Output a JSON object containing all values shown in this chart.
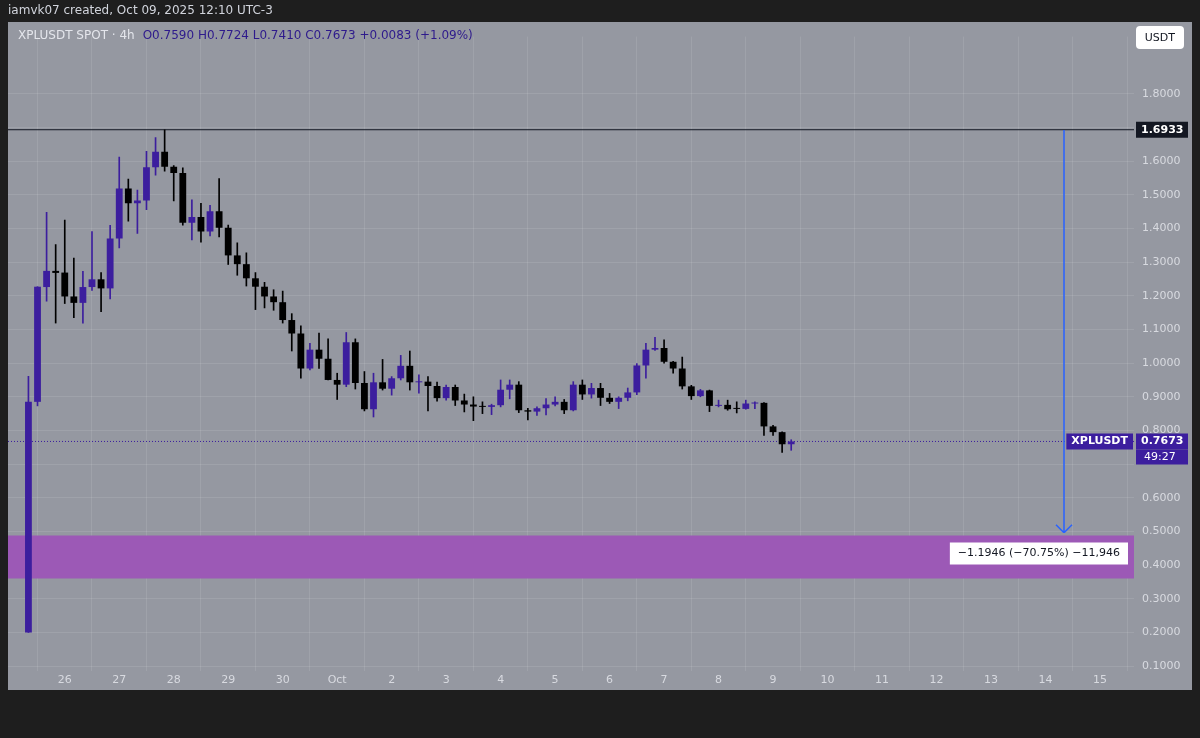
{
  "chart_data": {
    "type": "candlestick",
    "title": "XPLUSDT SPOT · 4h",
    "subtitle": "O0.7590 H0.7724 L0.7410 C0.7673 +0.0083 (+1.09%)",
    "annotations": [
      "iamvk07 created, Oct 09, 2025 12:10 UTC-3",
      "USDT",
      "49:27",
      "XPLUSDT",
      {
        "text": "−1.1946 (−70.75%) −11,946",
        "x": "2025-10-14T08:00",
        "y": 0.488
      }
    ],
    "x": [
      "2025-09-25T08:00",
      "2025-09-25T12:00",
      "2025-09-25T16:00",
      "2025-09-25T20:00",
      "2025-09-26T00:00",
      "2025-09-26T04:00",
      "2025-09-26T08:00",
      "2025-09-26T12:00",
      "2025-09-26T16:00",
      "2025-09-26T20:00",
      "2025-09-27T00:00",
      "2025-09-27T04:00",
      "2025-09-27T08:00",
      "2025-09-27T12:00",
      "2025-09-27T16:00",
      "2025-09-27T20:00",
      "2025-09-28T00:00",
      "2025-09-28T04:00",
      "2025-09-28T08:00",
      "2025-09-28T12:00",
      "2025-09-28T16:00",
      "2025-09-28T20:00",
      "2025-09-29T00:00",
      "2025-09-29T04:00",
      "2025-09-29T08:00",
      "2025-09-29T12:00",
      "2025-09-29T16:00",
      "2025-09-29T20:00",
      "2025-09-30T00:00",
      "2025-09-30T04:00",
      "2025-09-30T08:00",
      "2025-09-30T12:00",
      "2025-09-30T16:00",
      "2025-09-30T20:00",
      "2025-10-01T00:00",
      "2025-10-01T04:00",
      "2025-10-01T08:00",
      "2025-10-01T12:00",
      "2025-10-01T16:00",
      "2025-10-01T20:00",
      "2025-10-02T00:00",
      "2025-10-02T04:00",
      "2025-10-02T08:00",
      "2025-10-02T12:00",
      "2025-10-02T16:00",
      "2025-10-02T20:00",
      "2025-10-03T00:00",
      "2025-10-03T04:00",
      "2025-10-03T08:00",
      "2025-10-03T12:00",
      "2025-10-03T16:00",
      "2025-10-03T20:00",
      "2025-10-04T00:00",
      "2025-10-04T04:00",
      "2025-10-04T08:00",
      "2025-10-04T12:00",
      "2025-10-04T16:00",
      "2025-10-04T20:00",
      "2025-10-05T00:00",
      "2025-10-05T04:00",
      "2025-10-05T08:00",
      "2025-10-05T12:00",
      "2025-10-05T16:00",
      "2025-10-05T20:00",
      "2025-10-06T00:00",
      "2025-10-06T04:00",
      "2025-10-06T08:00",
      "2025-10-06T12:00",
      "2025-10-06T16:00",
      "2025-10-06T20:00",
      "2025-10-07T00:00",
      "2025-10-07T04:00",
      "2025-10-07T08:00",
      "2025-10-07T12:00",
      "2025-10-07T16:00",
      "2025-10-07T20:00",
      "2025-10-08T00:00",
      "2025-10-08T04:00",
      "2025-10-08T08:00",
      "2025-10-08T12:00",
      "2025-10-08T16:00",
      "2025-10-08T20:00",
      "2025-10-09T00:00",
      "2025-10-09T04:00",
      "2025-10-09T08:00"
    ],
    "ohlc": [
      [
        0.2,
        0.961,
        0.2,
        0.885
      ],
      [
        0.885,
        1.227,
        0.873,
        1.227
      ],
      [
        1.226,
        1.448,
        1.184,
        1.274
      ],
      [
        1.274,
        1.352,
        1.119,
        1.268
      ],
      [
        1.269,
        1.425,
        1.177,
        1.198
      ],
      [
        1.198,
        1.312,
        1.135,
        1.179
      ],
      [
        1.179,
        1.273,
        1.119,
        1.226
      ],
      [
        1.226,
        1.391,
        1.216,
        1.249
      ],
      [
        1.249,
        1.269,
        1.153,
        1.222
      ],
      [
        1.222,
        1.409,
        1.191,
        1.37
      ],
      [
        1.37,
        1.612,
        1.342,
        1.519
      ],
      [
        1.519,
        1.547,
        1.422,
        1.475
      ],
      [
        1.475,
        1.514,
        1.385,
        1.483
      ],
      [
        1.483,
        1.629,
        1.456,
        1.582
      ],
      [
        1.582,
        1.67,
        1.558,
        1.628
      ],
      [
        1.628,
        1.6933,
        1.57,
        1.583
      ],
      [
        1.583,
        1.587,
        1.482,
        1.565
      ],
      [
        1.565,
        1.58,
        1.41,
        1.417
      ],
      [
        1.417,
        1.485,
        1.366,
        1.434
      ],
      [
        1.434,
        1.475,
        1.359,
        1.391
      ],
      [
        1.391,
        1.469,
        1.378,
        1.451
      ],
      [
        1.451,
        1.548,
        1.375,
        1.402
      ],
      [
        1.402,
        1.41,
        1.293,
        1.32
      ],
      [
        1.32,
        1.357,
        1.261,
        1.294
      ],
      [
        1.294,
        1.328,
        1.229,
        1.252
      ],
      [
        1.252,
        1.269,
        1.159,
        1.227
      ],
      [
        1.227,
        1.24,
        1.164,
        1.198
      ],
      [
        1.198,
        1.218,
        1.157,
        1.181
      ],
      [
        1.181,
        1.214,
        1.119,
        1.128
      ],
      [
        1.128,
        1.147,
        1.036,
        1.088
      ],
      [
        1.088,
        1.111,
        0.955,
        0.984
      ],
      [
        0.984,
        1.059,
        0.98,
        1.04
      ],
      [
        1.04,
        1.089,
        0.984,
        1.013
      ],
      [
        1.013,
        1.072,
        0.95,
        0.95
      ],
      [
        0.95,
        0.97,
        0.892,
        0.936
      ],
      [
        0.936,
        1.091,
        0.93,
        1.062
      ],
      [
        1.062,
        1.072,
        0.923,
        0.941
      ],
      [
        0.941,
        0.975,
        0.858,
        0.863
      ],
      [
        0.863,
        0.97,
        0.84,
        0.943
      ],
      [
        0.943,
        1.011,
        0.92,
        0.924
      ],
      [
        0.924,
        0.96,
        0.905,
        0.955
      ],
      [
        0.955,
        1.023,
        0.95,
        0.992
      ],
      [
        0.992,
        1.036,
        0.92,
        0.943
      ],
      [
        0.943,
        0.965,
        0.911,
        0.945
      ],
      [
        0.945,
        0.96,
        0.858,
        0.932
      ],
      [
        0.932,
        0.944,
        0.887,
        0.896
      ],
      [
        0.896,
        0.935,
        0.89,
        0.929
      ],
      [
        0.929,
        0.935,
        0.874,
        0.889
      ],
      [
        0.889,
        0.908,
        0.855,
        0.877
      ],
      [
        0.877,
        0.9,
        0.829,
        0.871
      ],
      [
        0.871,
        0.885,
        0.85,
        0.87
      ],
      [
        0.87,
        0.878,
        0.847,
        0.875
      ],
      [
        0.875,
        0.95,
        0.87,
        0.921
      ],
      [
        0.921,
        0.95,
        0.894,
        0.936
      ],
      [
        0.936,
        0.945,
        0.853,
        0.86
      ],
      [
        0.86,
        0.866,
        0.831,
        0.856
      ],
      [
        0.856,
        0.87,
        0.845,
        0.866
      ],
      [
        0.866,
        0.895,
        0.846,
        0.877
      ],
      [
        0.877,
        0.9,
        0.873,
        0.885
      ],
      [
        0.885,
        0.892,
        0.85,
        0.86
      ],
      [
        0.86,
        0.945,
        0.858,
        0.936
      ],
      [
        0.936,
        0.95,
        0.892,
        0.907
      ],
      [
        0.907,
        0.94,
        0.896,
        0.926
      ],
      [
        0.926,
        0.94,
        0.874,
        0.897
      ],
      [
        0.897,
        0.91,
        0.88,
        0.885
      ],
      [
        0.885,
        0.9,
        0.865,
        0.897
      ],
      [
        0.897,
        0.926,
        0.888,
        0.913
      ],
      [
        0.913,
        0.999,
        0.906,
        0.993
      ],
      [
        0.993,
        1.059,
        0.955,
        1.04
      ],
      [
        1.04,
        1.077,
        1.038,
        1.045
      ],
      [
        1.045,
        1.069,
        1.0,
        1.004
      ],
      [
        1.004,
        1.005,
        0.97,
        0.984
      ],
      [
        0.984,
        1.018,
        0.923,
        0.931
      ],
      [
        0.931,
        0.934,
        0.892,
        0.902
      ],
      [
        0.902,
        0.922,
        0.9,
        0.919
      ],
      [
        0.919,
        0.92,
        0.856,
        0.873
      ],
      [
        0.873,
        0.89,
        0.87,
        0.876
      ],
      [
        0.876,
        0.89,
        0.86,
        0.863
      ],
      [
        0.866,
        0.885,
        0.852,
        0.864
      ],
      [
        0.864,
        0.89,
        0.863,
        0.88
      ],
      [
        0.88,
        0.885,
        0.865,
        0.882
      ],
      [
        0.882,
        0.883,
        0.785,
        0.812
      ],
      [
        0.812,
        0.815,
        0.785,
        0.795
      ],
      [
        0.795,
        0.796,
        0.735,
        0.759
      ],
      [
        0.759,
        0.7724,
        0.741,
        0.7673
      ]
    ],
    "colors": [
      "#3c1e9e",
      "#3c1e9e",
      "#3c1e9e",
      "#000000",
      "#000000",
      "#000000",
      "#3c1e9e",
      "#3c1e9e",
      "#000000",
      "#3c1e9e",
      "#3c1e9e",
      "#000000",
      "#3c1e9e",
      "#3c1e9e",
      "#3c1e9e",
      "#000000",
      "#000000",
      "#000000",
      "#3c1e9e",
      "#000000",
      "#3c1e9e",
      "#000000",
      "#000000",
      "#000000",
      "#000000",
      "#000000",
      "#000000",
      "#000000",
      "#000000",
      "#000000",
      "#000000",
      "#3c1e9e",
      "#000000",
      "#000000",
      "#000000",
      "#3c1e9e",
      "#000000",
      "#000000",
      "#3c1e9e",
      "#000000",
      "#3c1e9e",
      "#3c1e9e",
      "#000000",
      "#3c1e9e",
      "#000000",
      "#000000",
      "#3c1e9e",
      "#000000",
      "#000000",
      "#000000",
      "#000000",
      "#3c1e9e",
      "#3c1e9e",
      "#3c1e9e",
      "#000000",
      "#000000",
      "#3c1e9e",
      "#3c1e9e",
      "#3c1e9e",
      "#000000",
      "#3c1e9e",
      "#000000",
      "#3c1e9e",
      "#000000",
      "#000000",
      "#3c1e9e",
      "#3c1e9e",
      "#3c1e9e",
      "#3c1e9e",
      "#3c1e9e",
      "#000000",
      "#000000",
      "#000000",
      "#000000",
      "#3c1e9e",
      "#000000",
      "#3c1e9e",
      "#000000",
      "#000000",
      "#3c1e9e",
      "#3c1e9e",
      "#000000",
      "#000000",
      "#000000",
      "#3c1e9e"
    ],
    "xlim": [
      "2025-09-24T23:00",
      "2025-10-15T15:00"
    ],
    "xticks": [
      {
        "value": "2025-09-26",
        "label": "26"
      },
      {
        "value": "2025-09-27",
        "label": "27"
      },
      {
        "value": "2025-09-28",
        "label": "28"
      },
      {
        "value": "2025-09-29",
        "label": "29"
      },
      {
        "value": "2025-09-30",
        "label": "30"
      },
      {
        "value": "2025-10-01",
        "label": "Oct"
      },
      {
        "value": "2025-10-02",
        "label": "2"
      },
      {
        "value": "2025-10-03",
        "label": "3"
      },
      {
        "value": "2025-10-04",
        "label": "4"
      },
      {
        "value": "2025-10-05",
        "label": "5"
      },
      {
        "value": "2025-10-06",
        "label": "6"
      },
      {
        "value": "2025-10-07",
        "label": "7"
      },
      {
        "value": "2025-10-08",
        "label": "8"
      },
      {
        "value": "2025-10-09",
        "label": "9"
      },
      {
        "value": "2025-10-10",
        "label": "10"
      },
      {
        "value": "2025-10-11",
        "label": "11"
      },
      {
        "value": "2025-10-12",
        "label": "12"
      },
      {
        "value": "2025-10-13",
        "label": "13"
      },
      {
        "value": "2025-10-14",
        "label": "14"
      },
      {
        "value": "2025-10-15",
        "label": "15"
      }
    ],
    "ylim": [
      0.086,
      1.97
    ],
    "yticks": [
      {
        "value": 0.1,
        "label": "0.1000"
      },
      {
        "value": 0.2,
        "label": "0.2000"
      },
      {
        "value": 0.3,
        "label": "0.3000"
      },
      {
        "value": 0.4,
        "label": "0.4000"
      },
      {
        "value": 0.5,
        "label": "0.5000"
      },
      {
        "value": 0.6,
        "label": "0.6000"
      },
      {
        "value": 0.7,
        "label": null
      },
      {
        "value": 0.8,
        "label": "0.8000"
      },
      {
        "value": 0.9,
        "label": "0.9000"
      },
      {
        "value": 1.0,
        "label": "1.0000"
      },
      {
        "value": 1.1,
        "label": "1.1000"
      },
      {
        "value": 1.2,
        "label": "1.2000"
      },
      {
        "value": 1.3,
        "label": "1.3000"
      },
      {
        "value": 1.4,
        "label": "1.4000"
      },
      {
        "value": 1.5,
        "label": "1.5000"
      },
      {
        "value": 1.6,
        "label": "1.6000"
      },
      {
        "value": 1.7,
        "label": null
      },
      {
        "value": 1.8,
        "label": "1.8000"
      }
    ],
    "ref_lines": [
      {
        "axis": "y",
        "value": 1.6933,
        "label": "1.6933",
        "color": "#131722",
        "line_style": "solid"
      },
      {
        "axis": "y",
        "value": 0.7673,
        "label": "0.7673",
        "color": "#3c1e9e",
        "line_style": "dotted"
      }
    ],
    "bands": [
      {
        "axis": "y",
        "from": 0.36,
        "to": 0.488,
        "color": "#9c59b6"
      }
    ],
    "grid": true,
    "legend": false
  }
}
